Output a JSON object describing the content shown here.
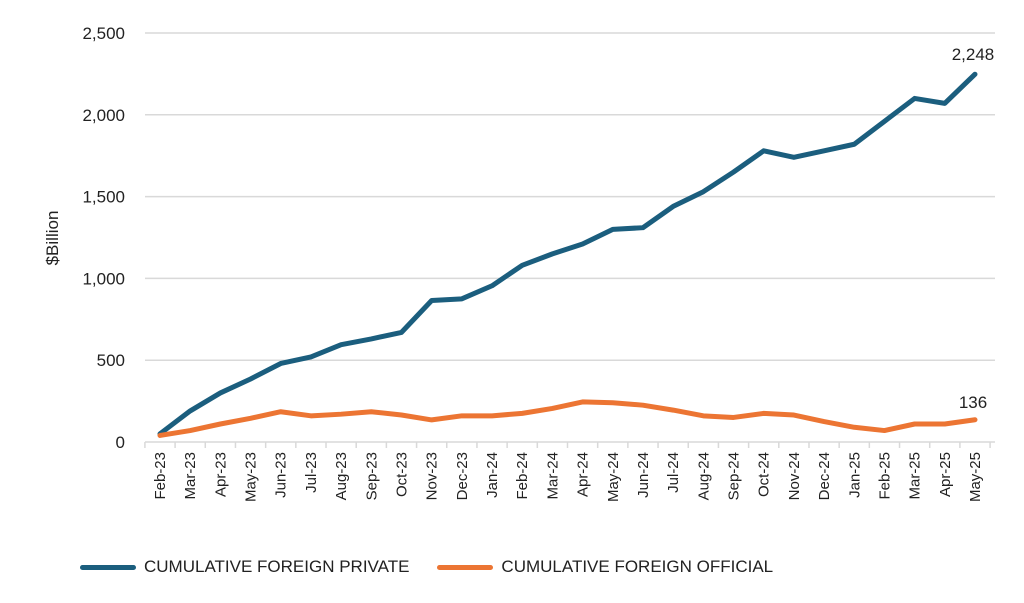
{
  "chart_data": {
    "type": "line",
    "title": "",
    "xlabel": "",
    "ylabel": "$Billion",
    "ylim": [
      0,
      2500
    ],
    "yticks": [
      0,
      500,
      1000,
      1500,
      2000,
      2500
    ],
    "ytick_labels": [
      "0",
      "500",
      "1,000",
      "1,500",
      "2,000",
      "2,500"
    ],
    "grid": true,
    "legend_position": "bottom",
    "categories": [
      "Feb-23",
      "Mar-23",
      "Apr-23",
      "May-23",
      "Jun-23",
      "Jul-23",
      "Aug-23",
      "Sep-23",
      "Oct-23",
      "Nov-23",
      "Dec-23",
      "Jan-24",
      "Feb-24",
      "Mar-24",
      "Apr-24",
      "May-24",
      "Jun-24",
      "Jul-24",
      "Aug-24",
      "Sep-24",
      "Oct-24",
      "Nov-24",
      "Dec-24",
      "Jan-25",
      "Feb-25",
      "Mar-25",
      "Apr-25",
      "May-25"
    ],
    "series": [
      {
        "name": "CUMULATIVE FOREIGN PRIVATE",
        "color": "#1b5e7e",
        "end_label": "2,248",
        "values": [
          50,
          190,
          300,
          385,
          480,
          520,
          595,
          630,
          670,
          865,
          875,
          955,
          1080,
          1150,
          1210,
          1300,
          1310,
          1440,
          1530,
          1650,
          1780,
          1740,
          1780,
          1820,
          1960,
          2100,
          2070,
          2248
        ]
      },
      {
        "name": "CUMULATIVE FOREIGN OFFICIAL",
        "color": "#ec7533",
        "end_label": "136",
        "values": [
          40,
          70,
          110,
          145,
          185,
          160,
          170,
          185,
          165,
          135,
          160,
          160,
          175,
          205,
          245,
          240,
          225,
          195,
          160,
          150,
          175,
          165,
          125,
          90,
          70,
          110,
          110,
          136
        ]
      }
    ]
  }
}
